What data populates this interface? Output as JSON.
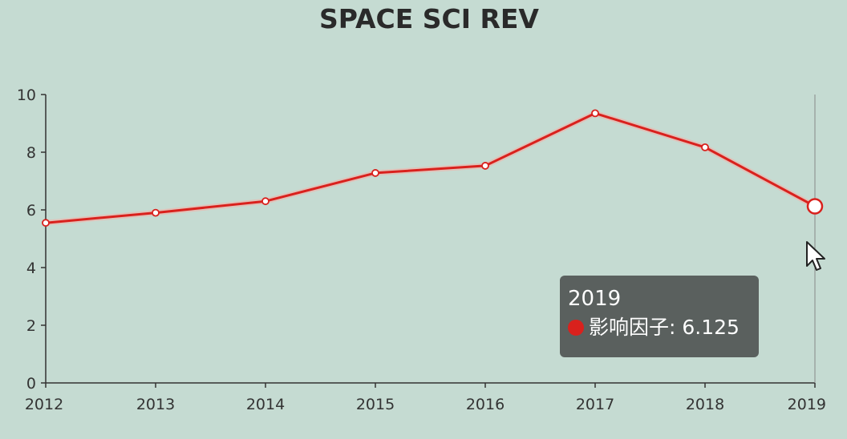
{
  "chart_data": {
    "type": "line",
    "title": "SPACE SCI REV",
    "x": [
      "2012",
      "2013",
      "2014",
      "2015",
      "2016",
      "2017",
      "2018",
      "2019"
    ],
    "series": [
      {
        "values": [
          5.55,
          5.9,
          6.3,
          7.28,
          7.53,
          9.35,
          8.17,
          6.125
        ],
        "color": "#d9211d"
      }
    ],
    "ylim": [
      0,
      10
    ],
    "yticks": [
      0,
      2,
      4,
      6,
      8,
      10
    ],
    "grid": false,
    "tooltip": {
      "title": "2019",
      "label": "影响因子",
      "value": "6.125",
      "text": "影响因子: 6.125"
    }
  },
  "icons": {
    "cursor": "mouse-pointer-icon"
  }
}
